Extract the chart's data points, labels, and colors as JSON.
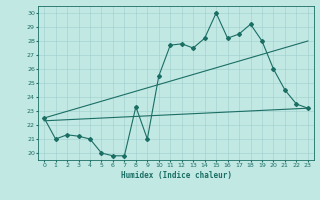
{
  "xlabel": "Humidex (Indice chaleur)",
  "ylabel": "",
  "bg_color": "#c2e8e4",
  "grid_color": "#9ecfcb",
  "line_color": "#1a6e64",
  "xlim": [
    -0.5,
    23.5
  ],
  "ylim": [
    19.5,
    30.5
  ],
  "xticks": [
    0,
    1,
    2,
    3,
    4,
    5,
    6,
    7,
    8,
    9,
    10,
    11,
    12,
    13,
    14,
    15,
    16,
    17,
    18,
    19,
    20,
    21,
    22,
    23
  ],
  "yticks": [
    20,
    21,
    22,
    23,
    24,
    25,
    26,
    27,
    28,
    29,
    30
  ],
  "line1_x": [
    0,
    1,
    2,
    3,
    4,
    5,
    6,
    7,
    8,
    9,
    10,
    11,
    12,
    13,
    14,
    15,
    16,
    17,
    18,
    19,
    20,
    21,
    22,
    23
  ],
  "line1_y": [
    22.5,
    21.0,
    21.3,
    21.2,
    21.0,
    20.0,
    19.8,
    19.8,
    23.3,
    21.0,
    25.5,
    27.7,
    27.8,
    27.5,
    28.2,
    30.0,
    28.2,
    28.5,
    29.2,
    28.0,
    26.0,
    24.5,
    23.5,
    23.2
  ],
  "line2_x": [
    0,
    23
  ],
  "line2_y": [
    22.5,
    28.0
  ],
  "line3_x": [
    0,
    23
  ],
  "line3_y": [
    22.3,
    23.2
  ]
}
